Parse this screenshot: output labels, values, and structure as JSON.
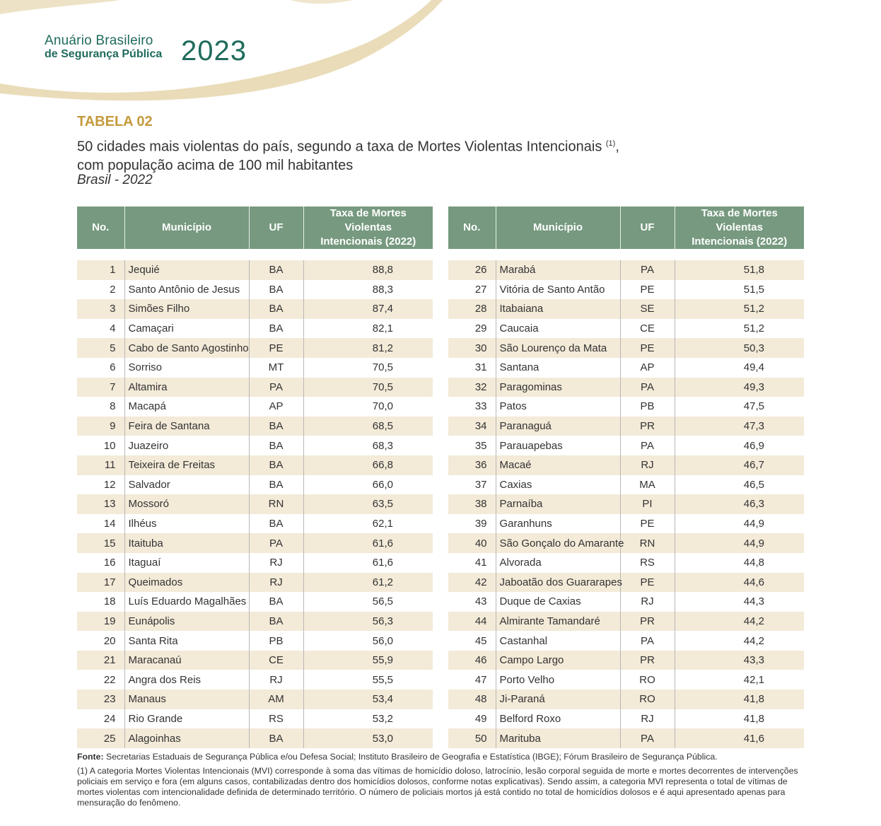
{
  "header": {
    "brand_line1": "Anuário Brasileiro",
    "brand_line2": "de Segurança Pública",
    "year": "2023"
  },
  "table_label": "TABELA 02",
  "title_line1": "50 cidades mais violentas do país, segundo a taxa de Mortes Violentas Intencionais",
  "title_sup": "(1)",
  "title_comma": ",",
  "title_line2": "com população acima de 100 mil habitantes",
  "subtitle": "Brasil - 2022",
  "columns": {
    "no": "No.",
    "municipio": "Município",
    "uf": "UF",
    "taxa_line1": "Taxa de Mortes Violentas",
    "taxa_line2": "Intencionais (2022)"
  },
  "rows": [
    {
      "no": "1",
      "municipio": "Jequié",
      "uf": "BA",
      "taxa": "88,8"
    },
    {
      "no": "2",
      "municipio": "Santo Antônio de Jesus",
      "uf": "BA",
      "taxa": "88,3"
    },
    {
      "no": "3",
      "municipio": "Simões Filho",
      "uf": "BA",
      "taxa": "87,4"
    },
    {
      "no": "4",
      "municipio": "Camaçari",
      "uf": "BA",
      "taxa": "82,1"
    },
    {
      "no": "5",
      "municipio": "Cabo de Santo Agostinho",
      "uf": "PE",
      "taxa": "81,2"
    },
    {
      "no": "6",
      "municipio": "Sorriso",
      "uf": "MT",
      "taxa": "70,5"
    },
    {
      "no": "7",
      "municipio": "Altamira",
      "uf": "PA",
      "taxa": "70,5"
    },
    {
      "no": "8",
      "municipio": "Macapá",
      "uf": "AP",
      "taxa": "70,0"
    },
    {
      "no": "9",
      "municipio": "Feira de Santana",
      "uf": "BA",
      "taxa": "68,5"
    },
    {
      "no": "10",
      "municipio": "Juazeiro",
      "uf": "BA",
      "taxa": "68,3"
    },
    {
      "no": "11",
      "municipio": "Teixeira de Freitas",
      "uf": "BA",
      "taxa": "66,8"
    },
    {
      "no": "12",
      "municipio": "Salvador",
      "uf": "BA",
      "taxa": "66,0"
    },
    {
      "no": "13",
      "municipio": "Mossoró",
      "uf": "RN",
      "taxa": "63,5"
    },
    {
      "no": "14",
      "municipio": "Ilhéus",
      "uf": "BA",
      "taxa": "62,1"
    },
    {
      "no": "15",
      "municipio": "Itaituba",
      "uf": "PA",
      "taxa": "61,6"
    },
    {
      "no": "16",
      "municipio": "Itaguaí",
      "uf": "RJ",
      "taxa": "61,6"
    },
    {
      "no": "17",
      "municipio": "Queimados",
      "uf": "RJ",
      "taxa": "61,2"
    },
    {
      "no": "18",
      "municipio": "Luís Eduardo Magalhães",
      "uf": "BA",
      "taxa": "56,5"
    },
    {
      "no": "19",
      "municipio": "Eunápolis",
      "uf": "BA",
      "taxa": "56,3"
    },
    {
      "no": "20",
      "municipio": "Santa Rita",
      "uf": "PB",
      "taxa": "56,0"
    },
    {
      "no": "21",
      "municipio": "Maracanaú",
      "uf": "CE",
      "taxa": "55,9"
    },
    {
      "no": "22",
      "municipio": "Angra dos Reis",
      "uf": "RJ",
      "taxa": "55,5"
    },
    {
      "no": "23",
      "municipio": "Manaus",
      "uf": "AM",
      "taxa": "53,4"
    },
    {
      "no": "24",
      "municipio": "Rio Grande",
      "uf": "RS",
      "taxa": "53,2"
    },
    {
      "no": "25",
      "municipio": "Alagoinhas",
      "uf": "BA",
      "taxa": "53,0"
    },
    {
      "no": "26",
      "municipio": "Marabá",
      "uf": "PA",
      "taxa": "51,8"
    },
    {
      "no": "27",
      "municipio": "Vitória de Santo Antão",
      "uf": "PE",
      "taxa": "51,5"
    },
    {
      "no": "28",
      "municipio": "Itabaiana",
      "uf": "SE",
      "taxa": "51,2"
    },
    {
      "no": "29",
      "municipio": "Caucaia",
      "uf": "CE",
      "taxa": "51,2"
    },
    {
      "no": "30",
      "municipio": "São Lourenço da Mata",
      "uf": "PE",
      "taxa": "50,3"
    },
    {
      "no": "31",
      "municipio": "Santana",
      "uf": "AP",
      "taxa": "49,4"
    },
    {
      "no": "32",
      "municipio": "Paragominas",
      "uf": "PA",
      "taxa": "49,3"
    },
    {
      "no": "33",
      "municipio": "Patos",
      "uf": "PB",
      "taxa": "47,5"
    },
    {
      "no": "34",
      "municipio": "Paranaguá",
      "uf": "PR",
      "taxa": "47,3"
    },
    {
      "no": "35",
      "municipio": "Parauapebas",
      "uf": "PA",
      "taxa": "46,9"
    },
    {
      "no": "36",
      "municipio": "Macaé",
      "uf": "RJ",
      "taxa": "46,7"
    },
    {
      "no": "37",
      "municipio": "Caxias",
      "uf": "MA",
      "taxa": "46,5"
    },
    {
      "no": "38",
      "municipio": "Parnaíba",
      "uf": "PI",
      "taxa": "46,3"
    },
    {
      "no": "39",
      "municipio": "Garanhuns",
      "uf": "PE",
      "taxa": "44,9"
    },
    {
      "no": "40",
      "municipio": "São Gonçalo do Amarante",
      "uf": "RN",
      "taxa": "44,9"
    },
    {
      "no": "41",
      "municipio": "Alvorada",
      "uf": "RS",
      "taxa": "44,8"
    },
    {
      "no": "42",
      "municipio": "Jaboatão dos Guararapes",
      "uf": "PE",
      "taxa": "44,6"
    },
    {
      "no": "43",
      "municipio": "Duque de Caxias",
      "uf": "RJ",
      "taxa": "44,3"
    },
    {
      "no": "44",
      "municipio": "Almirante Tamandaré",
      "uf": "PR",
      "taxa": "44,2"
    },
    {
      "no": "45",
      "municipio": "Castanhal",
      "uf": "PA",
      "taxa": "44,2"
    },
    {
      "no": "46",
      "municipio": "Campo Largo",
      "uf": "PR",
      "taxa": "43,3"
    },
    {
      "no": "47",
      "municipio": "Porto Velho",
      "uf": "RO",
      "taxa": "42,1"
    },
    {
      "no": "48",
      "municipio": "Ji-Paraná",
      "uf": "RO",
      "taxa": "41,8"
    },
    {
      "no": "49",
      "municipio": "Belford Roxo",
      "uf": "RJ",
      "taxa": "41,8"
    },
    {
      "no": "50",
      "municipio": "Marituba",
      "uf": "PA",
      "taxa": "41,6"
    }
  ],
  "fonte_label": "Fonte:",
  "fonte_text": " Secretarias Estaduais de Segurança Pública e/ou Defesa Social; Instituto Brasileiro de Geografia e Estatística (IBGE); Fórum Brasileiro de Segurança Pública.",
  "note": "(1) A categoria Mortes Violentas Intencionais (MVI) corresponde à soma das vítimas de homicídio doloso, latrocínio, lesão corporal seguida de morte e mortes decorrentes de intervenções policiais em serviço e fora (em alguns casos, contabilizadas dentro dos homicídios dolosos, conforme notas explicativas). Sendo assim, a categoria MVI representa o total de vítimas de mortes violentas com intencionalidade definida de determinado território. O número de policiais mortos já está contido no total de homicídios dolosos e é aqui apresentado apenas para mensuração do fenômeno.",
  "colors": {
    "header_green": "#76997f",
    "brand_green": "#1f6b5c",
    "gold": "#c49a3c",
    "row_stripe": "#f3ead8"
  }
}
